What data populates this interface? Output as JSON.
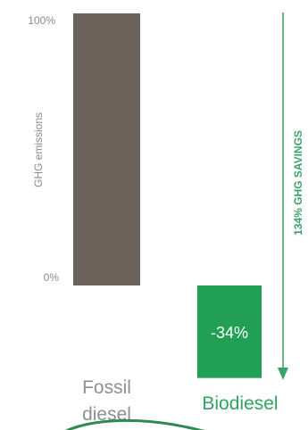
{
  "chart_data": {
    "type": "bar",
    "categories": [
      "Fossil diesel",
      "Biodiesel"
    ],
    "values": [
      100,
      -34
    ],
    "ylabel": "GHG emissions",
    "yticks": [
      "100%",
      "0%"
    ],
    "ylim": [
      -34,
      100
    ],
    "data_labels": [
      "",
      "-34%"
    ],
    "annotation": "134% GHG SAVINGS",
    "colors": {
      "fossil_bar": "#6b625b",
      "bio_bar": "#21a055",
      "fossil_label": "#8f8f8f",
      "bio_label": "#2fa35f",
      "arrow": "#3aa36a",
      "logo_arc": "#2e8b4f"
    }
  }
}
